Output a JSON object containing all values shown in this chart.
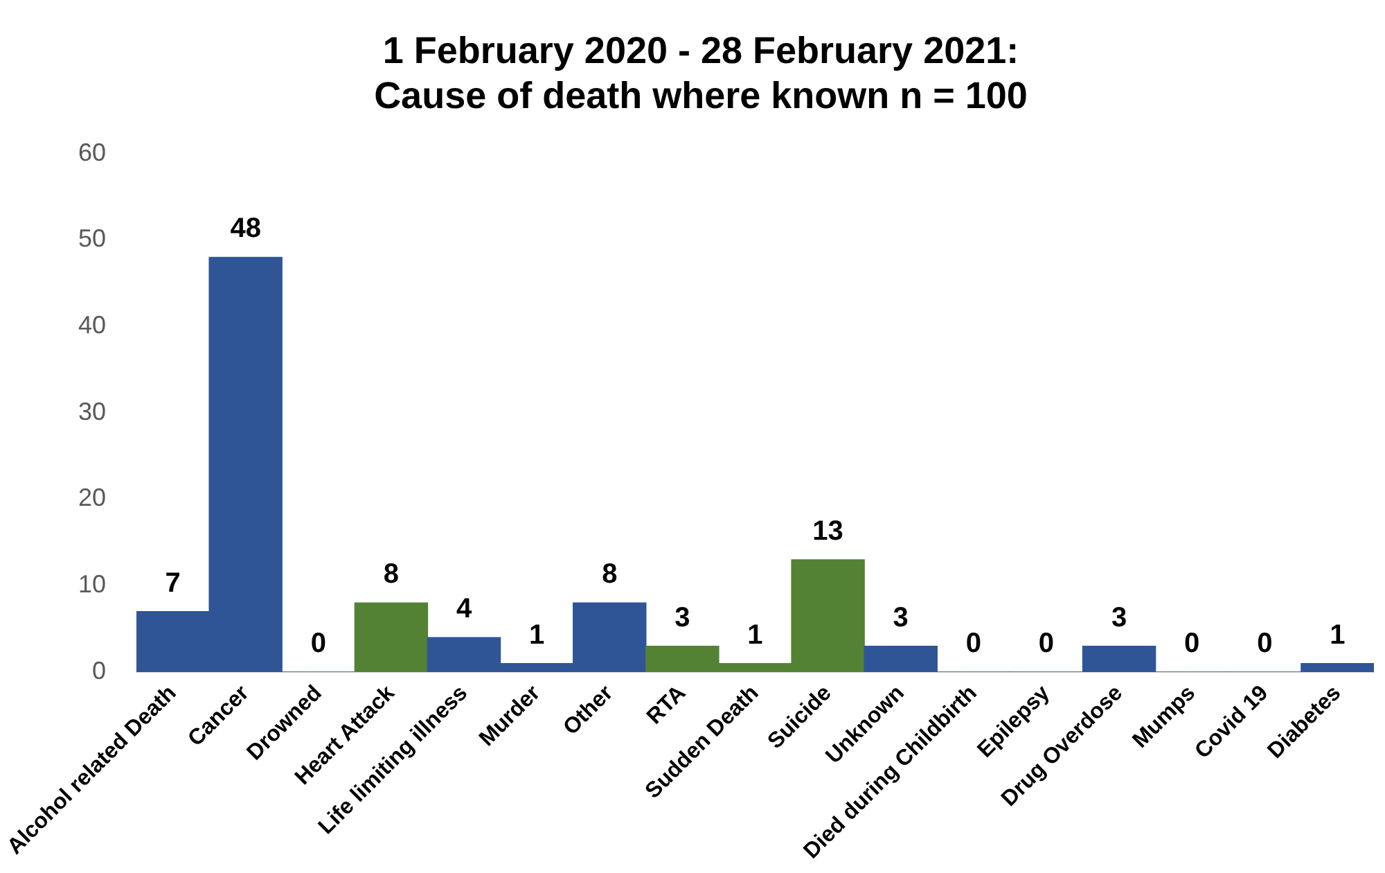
{
  "chart_data": {
    "type": "bar",
    "title": "1 February 2020 - 28 February 2021:\nCause of death where known n = 100",
    "categories": [
      "Alcohol related Death",
      "Cancer",
      "Drowned",
      "Heart Attack",
      "Life limiting illness",
      "Murder",
      "Other",
      "RTA",
      "Sudden Death",
      "Suicide",
      "Unknown",
      "Died during Childbirth",
      "Epilepsy",
      "Drug Overdose",
      "Mumps",
      "Covid 19",
      "Diabetes"
    ],
    "values": [
      7,
      48,
      0,
      8,
      4,
      1,
      8,
      3,
      1,
      13,
      3,
      0,
      0,
      3,
      0,
      0,
      1
    ],
    "colors": [
      "#2f5597",
      "#2f5597",
      "#2f5597",
      "#548235",
      "#2f5597",
      "#2f5597",
      "#2f5597",
      "#548235",
      "#548235",
      "#548235",
      "#2f5597",
      "#2f5597",
      "#2f5597",
      "#2f5597",
      "#2f5597",
      "#2f5597",
      "#2f5597"
    ],
    "ylim": [
      0,
      60
    ],
    "yticks": [
      0,
      10,
      20,
      30,
      40,
      50,
      60
    ],
    "grid": false,
    "legend": false,
    "data_labels": true
  }
}
